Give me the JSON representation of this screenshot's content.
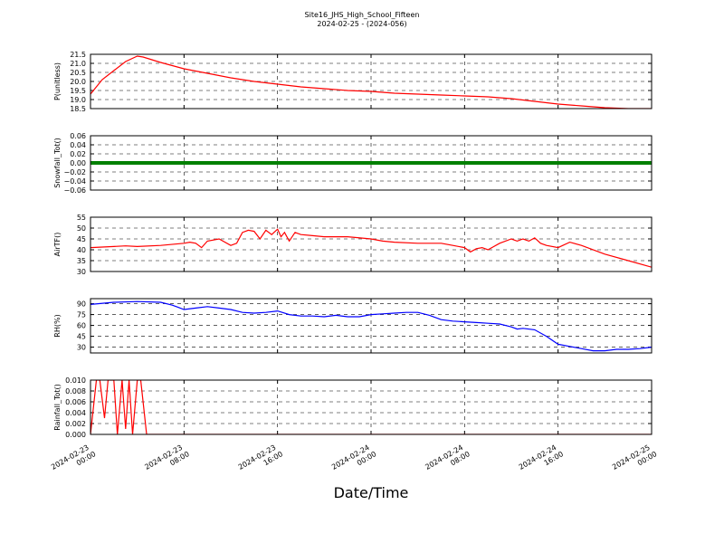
{
  "figure": {
    "title_line1": "Site16_JHS_High_School_Fifteen",
    "title_line2": "2024-02-25 - (2024-056)",
    "xlabel": "Date/Time"
  },
  "chart_data": [
    {
      "type": "line",
      "ylabel": "P(unitless)",
      "color": "#ff0000",
      "ylim": [
        18.5,
        21.5
      ],
      "yticks": [
        "21.5",
        "21.0",
        "20.5",
        "20.0",
        "19.5",
        "19.0",
        "18.5"
      ],
      "ytick_values": [
        21.5,
        21.0,
        20.5,
        20.0,
        19.5,
        19.0,
        18.5
      ],
      "x": [
        0,
        1,
        2,
        3,
        4,
        4.5,
        5,
        5.5,
        6,
        8,
        10,
        12,
        14,
        16,
        18,
        20,
        22,
        24,
        26,
        28,
        30,
        32,
        34,
        36,
        38,
        40,
        42,
        44,
        46,
        48
      ],
      "values": [
        19.3,
        20.1,
        20.6,
        21.1,
        21.4,
        21.35,
        21.25,
        21.15,
        21.05,
        20.7,
        20.45,
        20.2,
        20.0,
        19.85,
        19.7,
        19.6,
        19.5,
        19.45,
        19.35,
        19.3,
        19.25,
        19.2,
        19.15,
        19.05,
        18.9,
        18.75,
        18.65,
        18.55,
        18.5,
        18.5
      ]
    },
    {
      "type": "line",
      "ylabel": "Snowfall_Tot()",
      "color": "#008000",
      "ylim": [
        -0.06,
        0.06
      ],
      "yticks": [
        "0.06",
        "0.04",
        "0.02",
        "0.00",
        "−0.02",
        "−0.04",
        "−0.06"
      ],
      "ytick_values": [
        0.06,
        0.04,
        0.02,
        0.0,
        -0.02,
        -0.04,
        -0.06
      ],
      "x": [
        0,
        48
      ],
      "values": [
        0.0,
        0.0
      ]
    },
    {
      "type": "line",
      "ylabel": "AirTF()",
      "color": "#ff0000",
      "ylim": [
        30,
        55
      ],
      "yticks": [
        "55",
        "50",
        "45",
        "40",
        "35",
        "30"
      ],
      "ytick_values": [
        55,
        50,
        45,
        40,
        35,
        30
      ],
      "x": [
        0,
        2,
        3,
        4,
        6,
        8,
        8.5,
        9,
        9.5,
        10,
        11,
        12,
        12.5,
        13,
        13.5,
        14,
        14.5,
        15,
        15.5,
        16,
        16.3,
        16.6,
        17,
        17.5,
        18,
        19,
        20,
        22,
        24,
        25,
        26,
        28,
        30,
        31,
        32,
        32.5,
        33,
        33.5,
        34,
        35,
        36,
        36.5,
        37,
        37.5,
        38,
        38.5,
        39,
        40,
        41,
        42,
        44,
        46,
        48
      ],
      "values": [
        41,
        41.5,
        41.8,
        41.5,
        42,
        43,
        43.5,
        43,
        41,
        44,
        45,
        42,
        43,
        48,
        49,
        48.5,
        45,
        49,
        47,
        49.5,
        46,
        48,
        44,
        48,
        47,
        46.5,
        46,
        46,
        45,
        44,
        43.5,
        43,
        43,
        42,
        41,
        39,
        40.5,
        41,
        40,
        43,
        45,
        44,
        45,
        44,
        45.5,
        43,
        42,
        41,
        43.5,
        42,
        38,
        35,
        32
      ]
    },
    {
      "type": "line",
      "ylabel": "RH(%)",
      "color": "#0000ff",
      "ylim": [
        22,
        97
      ],
      "yticks": [
        "90",
        "75",
        "60",
        "45",
        "30"
      ],
      "ytick_values": [
        90,
        75,
        60,
        45,
        30
      ],
      "x": [
        0,
        2,
        4,
        6,
        7,
        7.5,
        8,
        9,
        10,
        11,
        12,
        13,
        14,
        15,
        16,
        17,
        18,
        19,
        20,
        21,
        22,
        23,
        24,
        25,
        26,
        27,
        28,
        29,
        30,
        31,
        32,
        33,
        34,
        35,
        36,
        36.5,
        37,
        38,
        39,
        40,
        41,
        42,
        43,
        44,
        45,
        46,
        47,
        48
      ],
      "values": [
        89,
        92,
        93,
        92,
        88,
        85,
        82,
        84,
        86,
        84,
        82,
        78,
        77,
        78,
        80,
        75,
        73,
        73,
        72,
        74,
        72,
        72,
        75,
        76,
        77,
        78,
        78,
        74,
        68,
        66,
        65,
        64,
        63,
        62,
        58,
        55,
        56,
        54,
        45,
        34,
        31,
        28,
        25,
        25,
        27,
        27,
        28,
        30
      ]
    },
    {
      "type": "line",
      "ylabel": "Rainfall_Tot()",
      "color": "#ff0000",
      "ylim": [
        0,
        0.01
      ],
      "yticks": [
        "0.010",
        "0.008",
        "0.006",
        "0.004",
        "0.002",
        "0.000"
      ],
      "ytick_values": [
        0.01,
        0.008,
        0.006,
        0.004,
        0.002,
        0.0
      ],
      "x": [
        0,
        0.5,
        0.8,
        1.2,
        1.5,
        2.0,
        2.3,
        2.7,
        3.0,
        3.3,
        3.6,
        4.0,
        4.3,
        4.8,
        48
      ],
      "values": [
        0,
        0.01,
        0.01,
        0.003,
        0.01,
        0.01,
        0.0,
        0.01,
        0.001,
        0.01,
        0.0,
        0.01,
        0.01,
        0.0,
        0.0
      ]
    }
  ],
  "xaxis": {
    "xlim": [
      0,
      48
    ],
    "tick_values": [
      0,
      8,
      16,
      24,
      32,
      40,
      48
    ],
    "tick_dates": [
      "2024-02-23",
      "2024-02-23",
      "2024-02-23",
      "2024-02-24",
      "2024-02-24",
      "2024-02-24",
      "2024-02-25"
    ],
    "tick_times": [
      "00:00",
      "08:00",
      "16:00",
      "00:00",
      "08:00",
      "16:00",
      "00:00"
    ]
  }
}
